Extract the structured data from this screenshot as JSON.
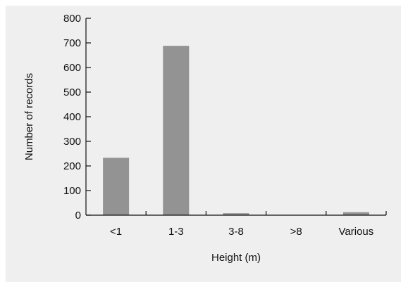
{
  "chart_data": {
    "type": "bar",
    "title": "",
    "xlabel": "Height (m)",
    "ylabel": "Number of records",
    "categories": [
      "<1",
      "1-3",
      "3-8",
      ">8",
      "Various"
    ],
    "values": [
      233,
      688,
      8,
      0,
      12
    ],
    "ylim": [
      0,
      800
    ],
    "yticks": [
      "0",
      "100",
      "200",
      "300",
      "400",
      "500",
      "600",
      "700",
      "800"
    ],
    "grid": false,
    "legend": "none",
    "colors": {
      "bar": "#939393",
      "axis": "#111111",
      "background": "#efefef"
    }
  }
}
